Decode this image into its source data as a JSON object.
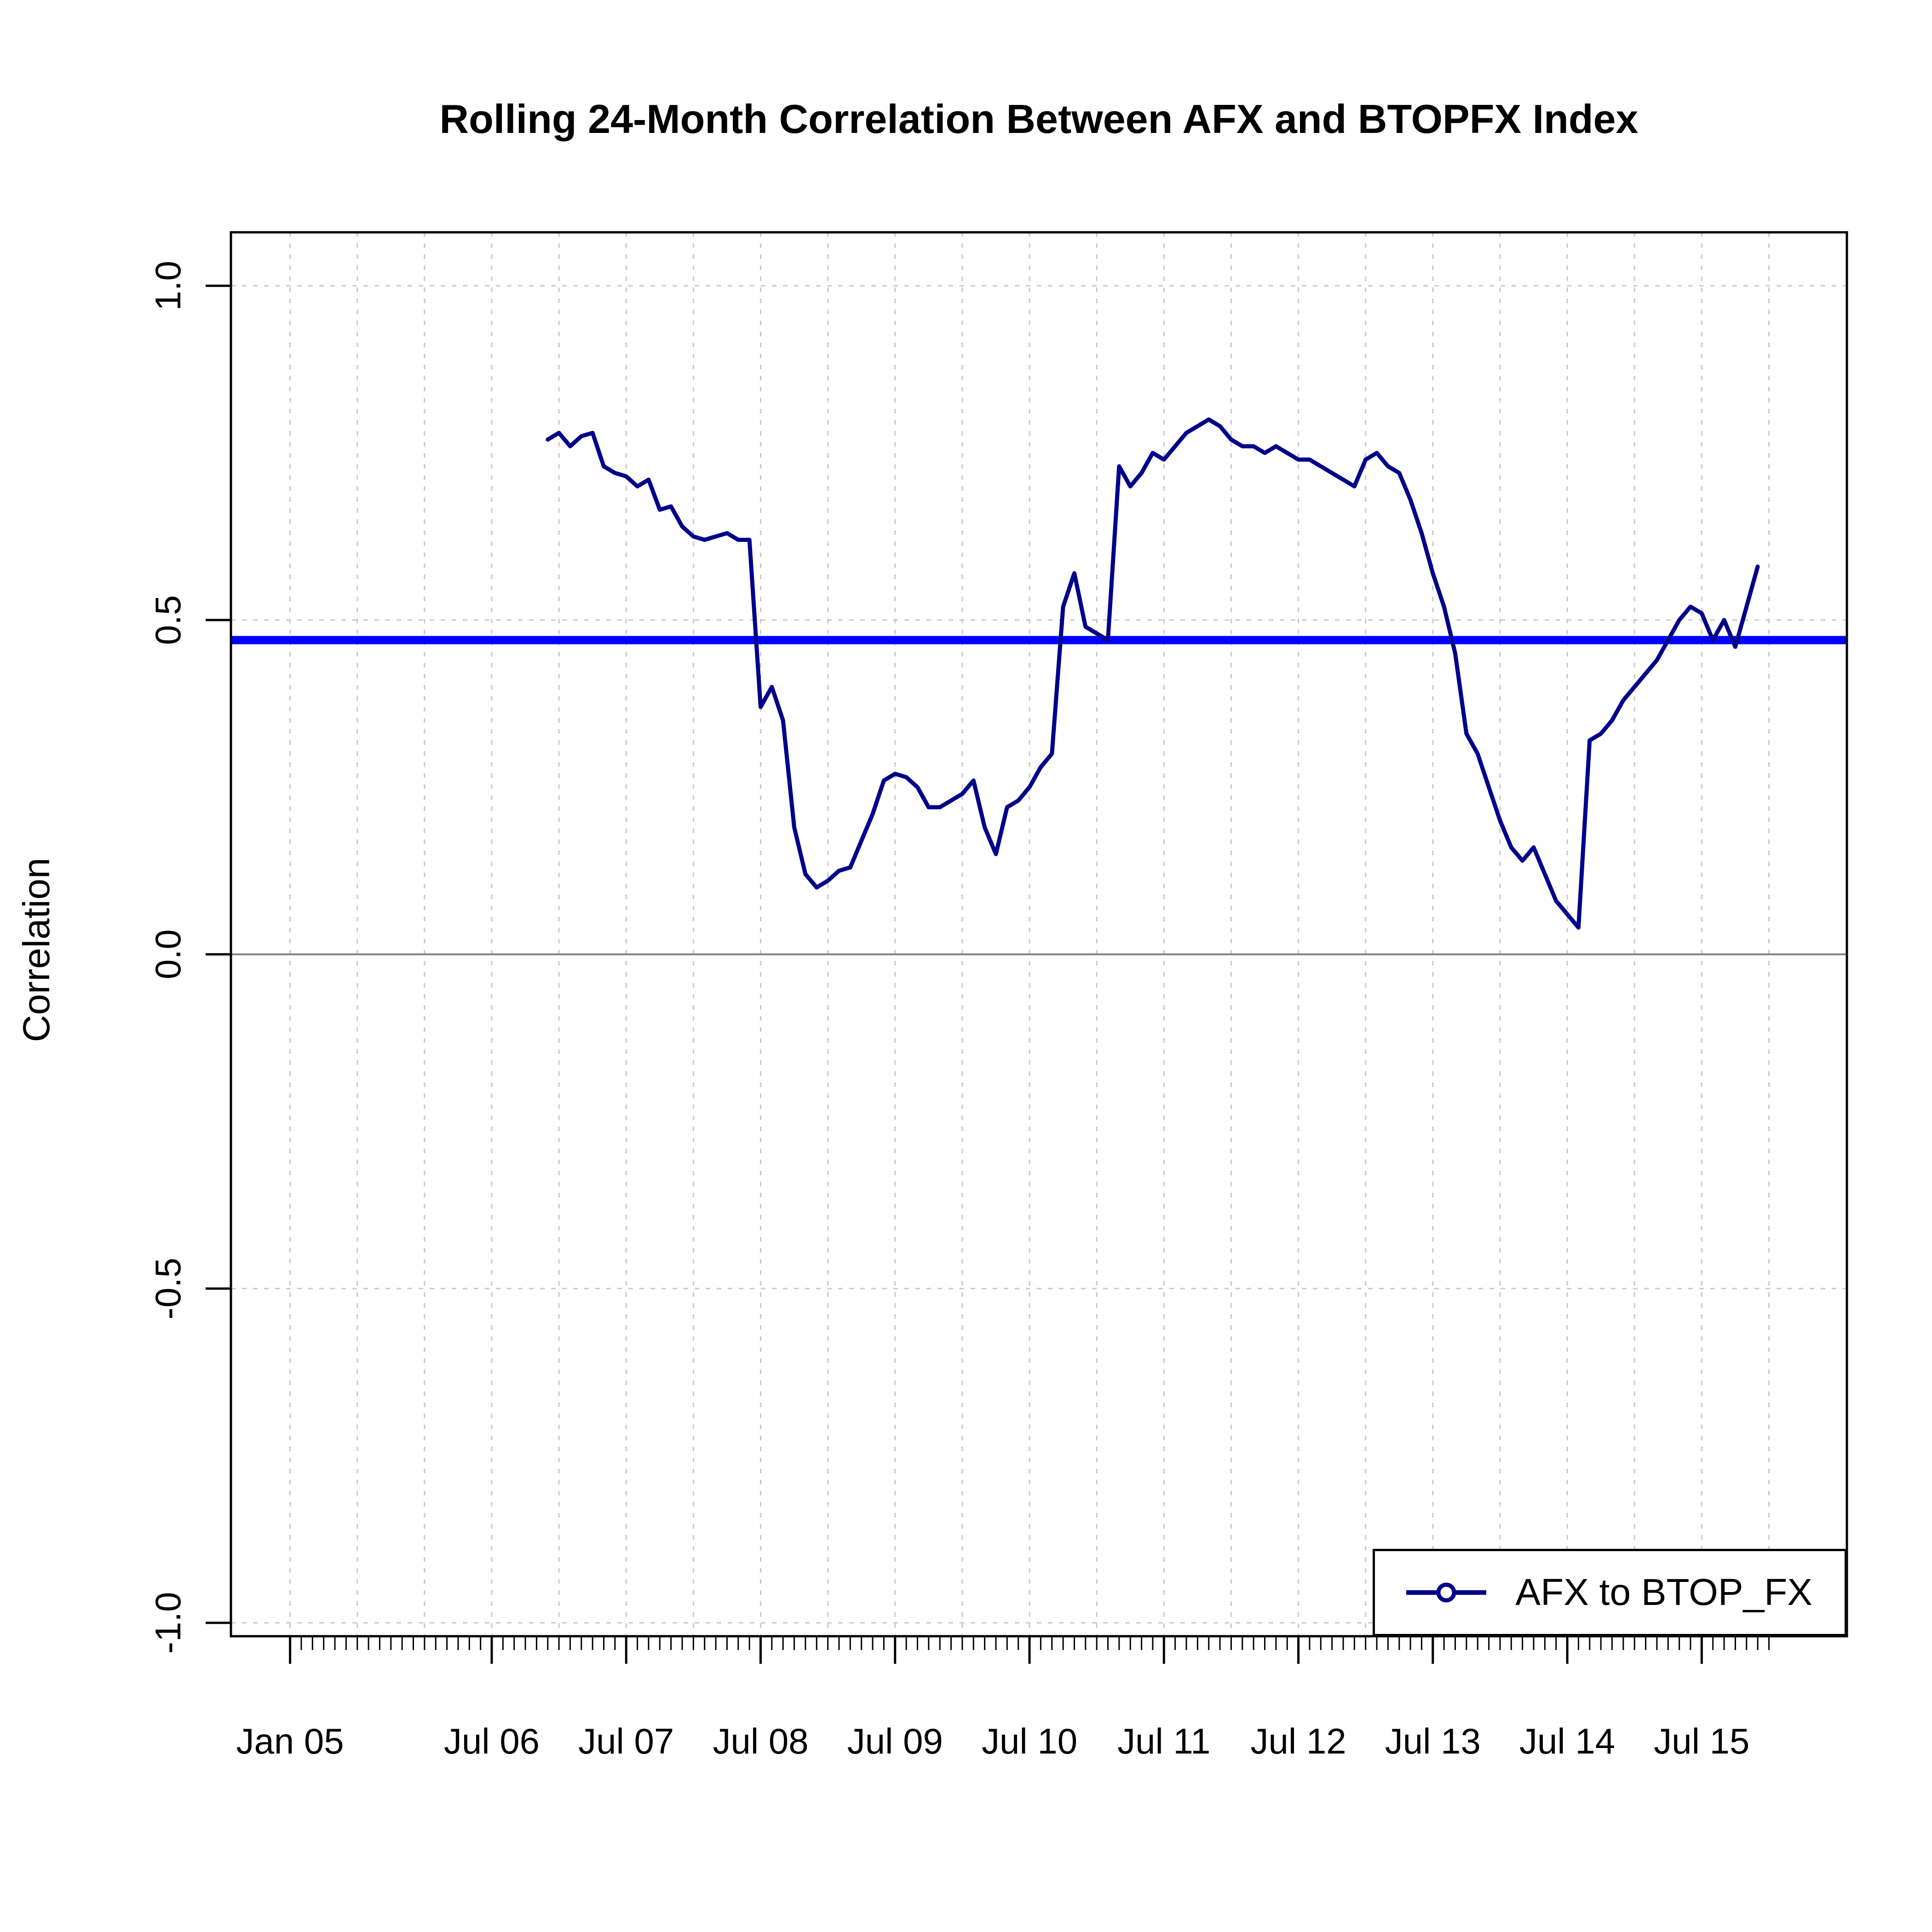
{
  "title": "Rolling 24-Month Correlation Between AFX and BTOPFX Index",
  "y_axis_label": "Correlation",
  "legend": {
    "label": "AFX to BTOP_FX"
  },
  "chart_data": {
    "type": "line",
    "title": "Rolling 24-Month Correlation Between AFX and BTOPFX Index",
    "xlabel": "",
    "ylabel": "Correlation",
    "xlim": [
      2004.56,
      2016.58
    ],
    "ylim": [
      -1.02,
      1.08
    ],
    "grid": {
      "on": true,
      "v_from": 2005.0,
      "v_to": 2016.0,
      "v_step_years": 0.5
    },
    "x_ticks": [
      {
        "label": "Jan 05",
        "year": 2005.0
      },
      {
        "label": "Jul 06",
        "year": 2006.5
      },
      {
        "label": "Jul 07",
        "year": 2007.5
      },
      {
        "label": "Jul 08",
        "year": 2008.5
      },
      {
        "label": "Jul 09",
        "year": 2009.5
      },
      {
        "label": "Jul 10",
        "year": 2010.5
      },
      {
        "label": "Jul 11",
        "year": 2011.5
      },
      {
        "label": "Jul 12",
        "year": 2012.5
      },
      {
        "label": "Jul 13",
        "year": 2013.5
      },
      {
        "label": "Jul 14",
        "year": 2014.5
      },
      {
        "label": "Jul 15",
        "year": 2015.5
      }
    ],
    "x_minor_ticks": {
      "from": 2005.0,
      "to": 2016.0,
      "step_months": 1
    },
    "y_ticks": [
      {
        "label": "1.0",
        "value": 1.0
      },
      {
        "label": "0.5",
        "value": 0.5
      },
      {
        "label": "0.0",
        "value": 0.0
      },
      {
        "label": "-0.5",
        "value": -0.5
      },
      {
        "label": "-1.0",
        "value": -1.0
      }
    ],
    "hline": {
      "value": 0.47
    },
    "series": [
      {
        "name": "AFX to BTOP_FX",
        "start_year": 2006,
        "start_month": 12,
        "frequency": "monthly",
        "values": [
          0.77,
          0.78,
          0.76,
          0.775,
          0.78,
          0.73,
          0.72,
          0.715,
          0.7,
          0.71,
          0.665,
          0.67,
          0.64,
          0.625,
          0.62,
          0.625,
          0.63,
          0.62,
          0.62,
          0.37,
          0.4,
          0.35,
          0.19,
          0.12,
          0.1,
          0.11,
          0.125,
          0.13,
          0.17,
          0.21,
          0.26,
          0.27,
          0.265,
          0.25,
          0.22,
          0.22,
          0.23,
          0.24,
          0.26,
          0.19,
          0.15,
          0.22,
          0.23,
          0.25,
          0.28,
          0.3,
          0.52,
          0.57,
          0.49,
          0.48,
          0.47,
          0.73,
          0.7,
          0.72,
          0.75,
          0.74,
          0.76,
          0.78,
          0.79,
          0.8,
          0.79,
          0.77,
          0.76,
          0.76,
          0.75,
          0.76,
          0.75,
          0.74,
          0.74,
          0.73,
          0.72,
          0.71,
          0.7,
          0.74,
          0.75,
          0.73,
          0.72,
          0.68,
          0.63,
          0.57,
          0.52,
          0.45,
          0.33,
          0.3,
          0.25,
          0.2,
          0.16,
          0.14,
          0.16,
          0.12,
          0.08,
          0.06,
          0.04,
          0.32,
          0.33,
          0.35,
          0.38,
          0.4,
          0.42,
          0.44,
          0.47,
          0.5,
          0.52,
          0.51,
          0.47,
          0.5,
          0.46,
          0.52,
          0.58
        ]
      }
    ],
    "colors": {
      "series": "#00008B",
      "mean_line": "#0000FF",
      "grid": "#C9C9C9",
      "zero_line": "#7F7F7F",
      "box": "#000000",
      "text": "#000000"
    },
    "legend_position": "bottomright"
  }
}
